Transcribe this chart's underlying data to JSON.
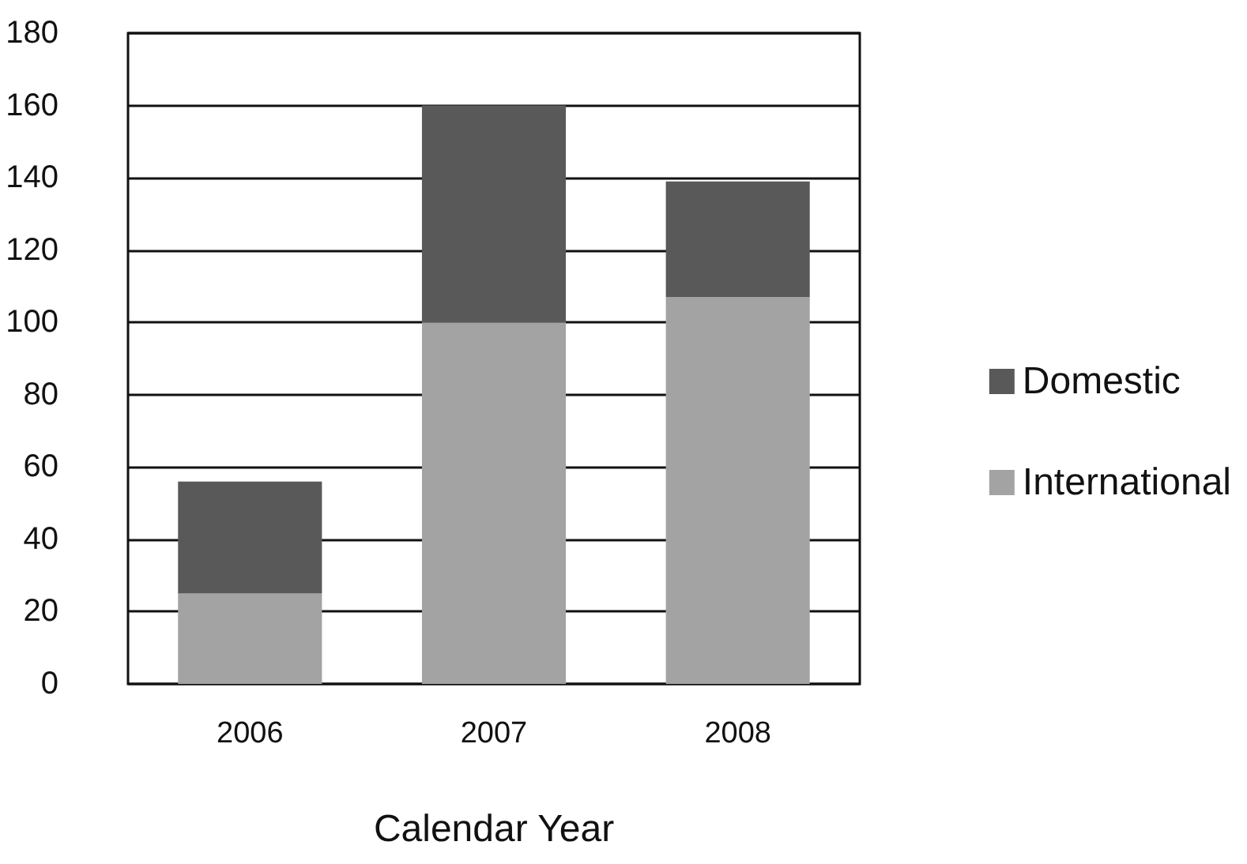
{
  "chart_data": {
    "type": "bar",
    "xlabel": "Calendar Year",
    "categories": [
      "2006",
      "2007",
      "2008"
    ],
    "stacked": true,
    "series": [
      {
        "name": "International",
        "color": "#a3a3a3",
        "values": [
          25,
          100,
          107
        ]
      },
      {
        "name": "Domestic",
        "color": "#595959",
        "values": [
          31,
          60,
          32
        ]
      }
    ],
    "ylim": [
      0,
      180
    ],
    "yticks": [
      0,
      20,
      40,
      60,
      80,
      100,
      120,
      140,
      160,
      180
    ],
    "grid": "y",
    "legend": "right"
  }
}
